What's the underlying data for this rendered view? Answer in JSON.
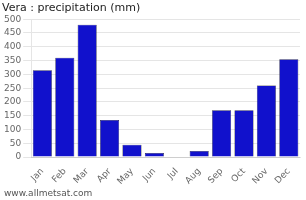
{
  "chart_data": {
    "type": "bar",
    "title": "Vera : precipitation (mm)",
    "annotation": "www.allmetsat.com",
    "categories": [
      "Jan",
      "Feb",
      "Mar",
      "Apr",
      "May",
      "Jun",
      "Jul",
      "Aug",
      "Sep",
      "Oct",
      "Nov",
      "Dec"
    ],
    "values": [
      315,
      360,
      480,
      135,
      45,
      15,
      2,
      22,
      170,
      170,
      260,
      355
    ],
    "color": "#1111CC",
    "ylim": [
      0,
      500
    ],
    "yticks": [
      0,
      50,
      100,
      150,
      200,
      250,
      300,
      350,
      400,
      450,
      500
    ],
    "grid": true
  }
}
